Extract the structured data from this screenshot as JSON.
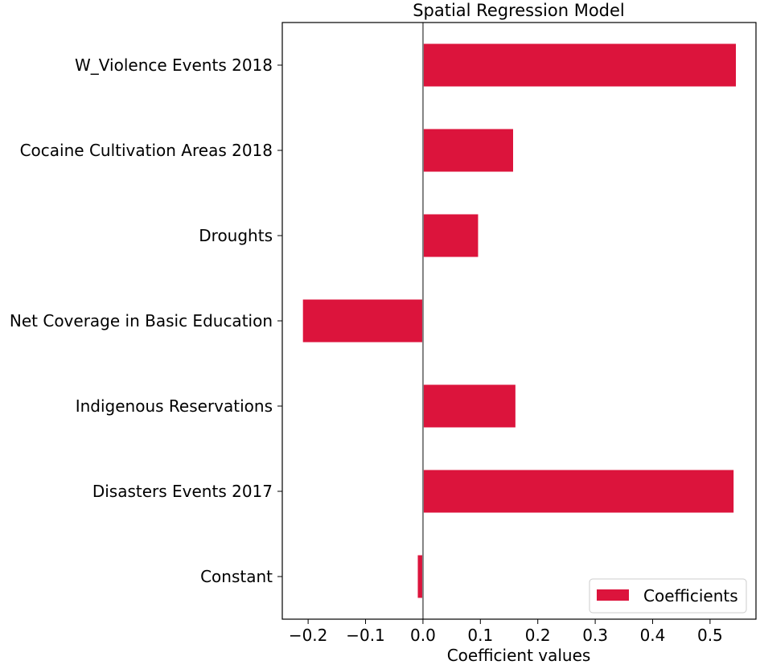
{
  "chart_data": {
    "type": "bar",
    "orientation": "horizontal",
    "title": "Spatial Regression Model",
    "xlabel": "Coefficient values",
    "ylabel": "",
    "categories": [
      "W_Violence Events 2018",
      "Cocaine Cultivation Areas 2018",
      "Droughts",
      "Net Coverage in Basic Education",
      "Indigenous Reservations",
      "Disasters Events 2017",
      "Constant"
    ],
    "series": [
      {
        "name": "Coefficients",
        "values": [
          0.545,
          0.157,
          0.096,
          -0.209,
          0.161,
          0.541,
          -0.009
        ],
        "color": "#dc143c"
      }
    ],
    "xlim": [
      -0.245,
      0.58
    ],
    "xticks": [
      -0.2,
      -0.1,
      0.0,
      0.1,
      0.2,
      0.3,
      0.4,
      0.5
    ],
    "xtick_labels": [
      "−0.2",
      "−0.1",
      "0.0",
      "0.1",
      "0.2",
      "0.3",
      "0.4",
      "0.5"
    ],
    "zero_line": true,
    "zero_line_color": "#808080",
    "grid": false,
    "legend": {
      "position": "bottom-right",
      "entries": [
        "Coefficients"
      ]
    }
  }
}
